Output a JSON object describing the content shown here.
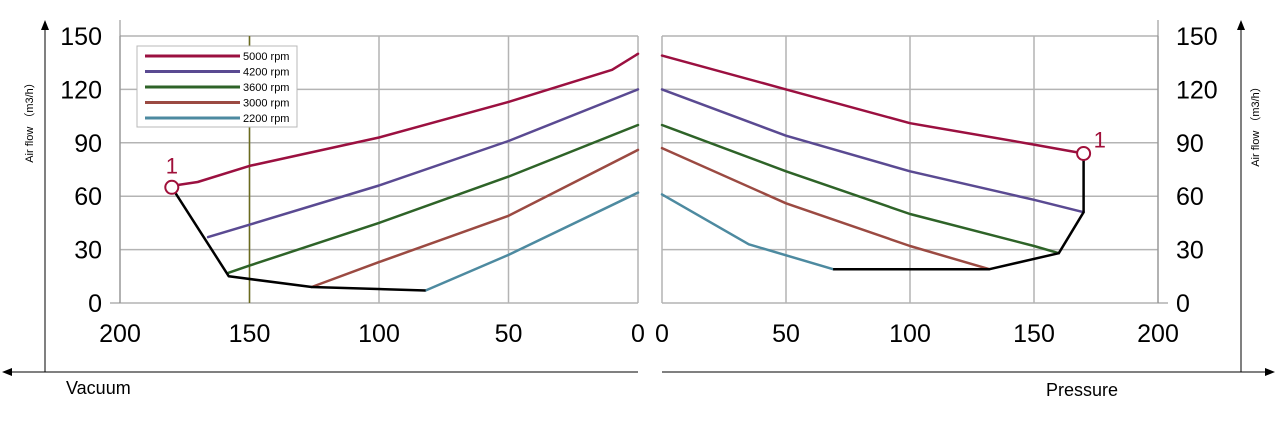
{
  "chart_data": [
    {
      "type": "line",
      "panel": "vacuum",
      "xlabel": "Vacuum",
      "ylabel": "Air flow （m3/h）",
      "xlim": [
        200,
        0
      ],
      "ylim": [
        0,
        150
      ],
      "x_ticks": [
        "200",
        "150",
        "100",
        "50",
        "0"
      ],
      "y_ticks": [
        "150",
        "120",
        "90",
        "60",
        "30",
        "0"
      ],
      "grid": true,
      "legend_position": "top-left",
      "series": [
        {
          "name": "5000 rpm",
          "color": "#9b1040",
          "x": [
            179,
            170,
            150,
            100,
            50,
            10,
            0
          ],
          "y": [
            66,
            68,
            77,
            93,
            113,
            131,
            140
          ]
        },
        {
          "name": "4200 rpm",
          "color": "#5a4a92",
          "x": [
            166,
            150,
            100,
            50,
            0
          ],
          "y": [
            37,
            44,
            66,
            91,
            120
          ]
        },
        {
          "name": "3600 rpm",
          "color": "#2e6328",
          "x": [
            158,
            150,
            100,
            50,
            0
          ],
          "y": [
            17,
            21,
            45,
            71,
            100
          ]
        },
        {
          "name": "3000 rpm",
          "color": "#9b4a42",
          "x": [
            126,
            100,
            50,
            0
          ],
          "y": [
            9,
            23,
            49,
            86
          ]
        },
        {
          "name": "2200 rpm",
          "color": "#4d8aa0",
          "x": [
            82,
            50,
            0
          ],
          "y": [
            7,
            27,
            62
          ]
        }
      ],
      "limit_line": {
        "color": "#000000",
        "x": [
          180,
          158,
          126,
          82
        ],
        "y": [
          65,
          15,
          9,
          7
        ]
      },
      "reference_line": {
        "color": "#6b6b1e",
        "x": 150
      },
      "marker": {
        "label": "1",
        "x": 180,
        "y": 65,
        "color": "#a0103a"
      }
    },
    {
      "type": "line",
      "panel": "pressure",
      "xlabel": "Pressure",
      "ylabel": "Air flow （m3/h）",
      "xlim": [
        0,
        200
      ],
      "ylim": [
        0,
        150
      ],
      "x_ticks": [
        "0",
        "50",
        "100",
        "150",
        "200"
      ],
      "y_ticks": [
        "150",
        "120",
        "90",
        "60",
        "30",
        "0"
      ],
      "grid": true,
      "series": [
        {
          "name": "5000 rpm",
          "color": "#9b1040",
          "x": [
            0,
            50,
            100,
            150,
            170
          ],
          "y": [
            139,
            120,
            101,
            89,
            84
          ]
        },
        {
          "name": "4200 rpm",
          "color": "#5a4a92",
          "x": [
            0,
            50,
            100,
            150,
            170
          ],
          "y": [
            120,
            94,
            74,
            58,
            51
          ]
        },
        {
          "name": "3600 rpm",
          "color": "#2e6328",
          "x": [
            0,
            50,
            100,
            150,
            160
          ],
          "y": [
            100,
            74,
            50,
            32,
            28
          ]
        },
        {
          "name": "3000 rpm",
          "color": "#9b4a42",
          "x": [
            0,
            50,
            100,
            132
          ],
          "y": [
            87,
            56,
            32,
            19
          ]
        },
        {
          "name": "2200 rpm",
          "color": "#4d8aa0",
          "x": [
            0,
            35,
            69
          ],
          "y": [
            61,
            33,
            19
          ]
        }
      ],
      "limit_line": {
        "color": "#000000",
        "x": [
          69,
          132,
          160,
          170,
          170
        ],
        "y": [
          19,
          19,
          28,
          51,
          84
        ]
      },
      "marker": {
        "label": "1",
        "x": 170,
        "y": 84,
        "color": "#a0103a"
      }
    }
  ]
}
